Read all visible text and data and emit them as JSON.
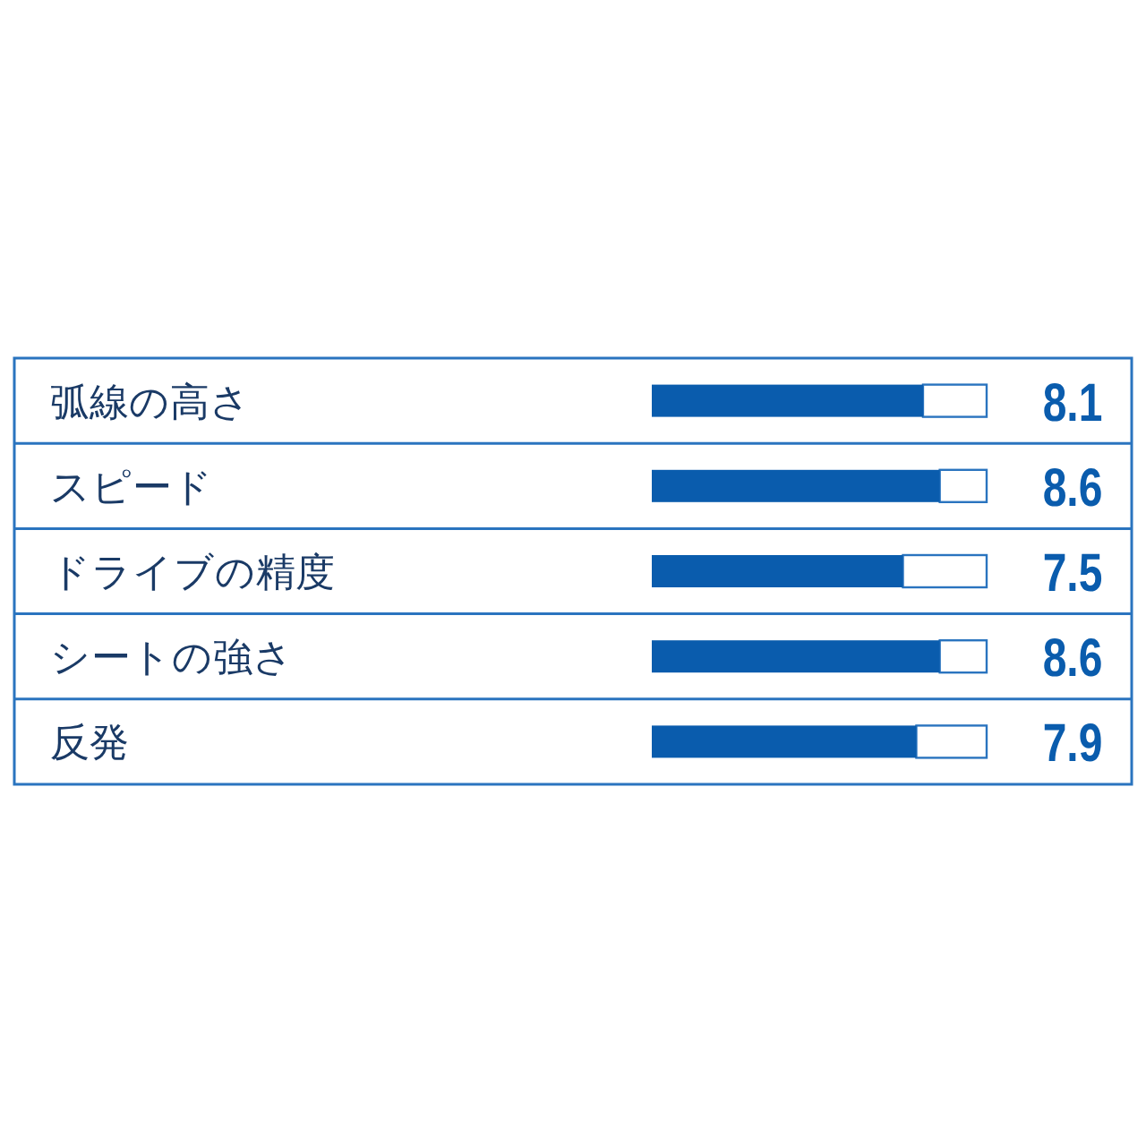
{
  "chart_data": {
    "type": "bar",
    "orientation": "horizontal",
    "categories": [
      "弧線の高さ",
      "スピード",
      "ドライブの精度",
      "シートの強さ",
      "反発"
    ],
    "values": [
      8.1,
      8.6,
      7.5,
      8.6,
      7.9
    ],
    "color": "#0a5cad",
    "xlim": [
      0,
      10
    ],
    "data_labels": true
  }
}
